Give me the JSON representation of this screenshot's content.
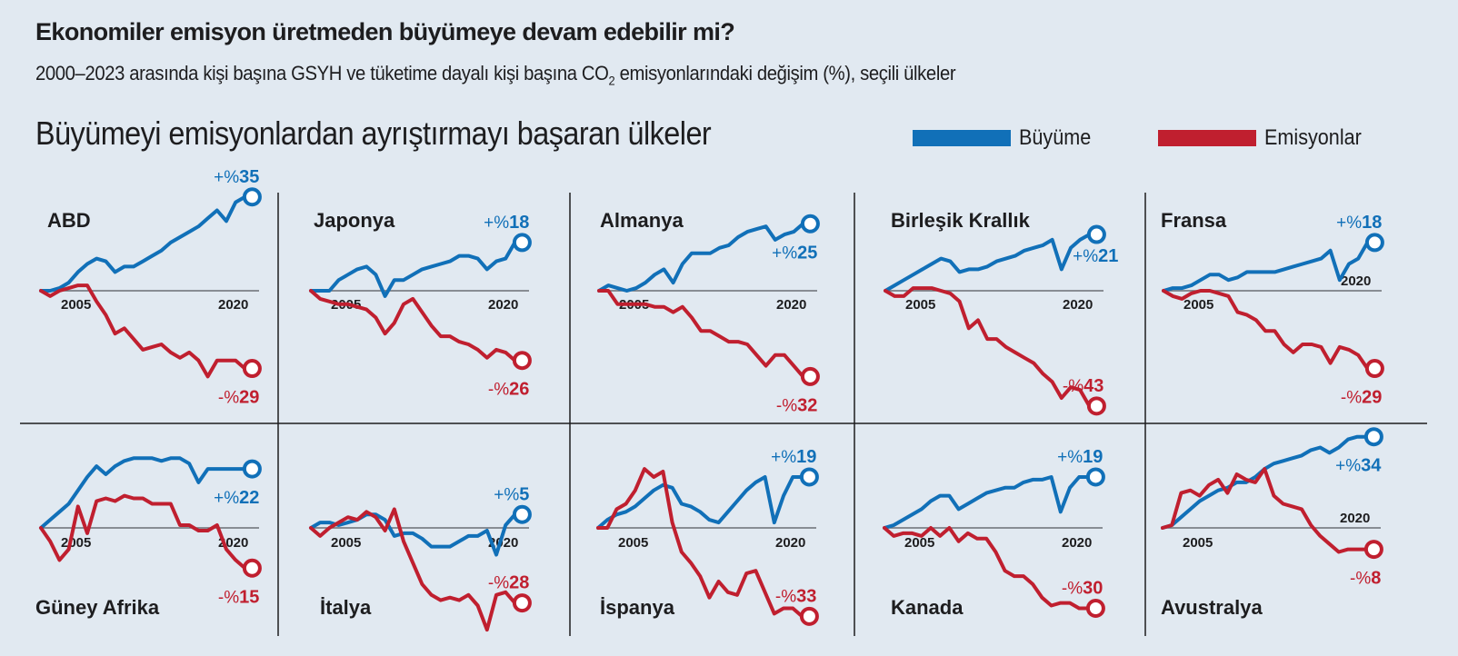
{
  "header": {
    "title": "Ekonomiler emisyon üretmeden büyümeye devam edebilir mi?",
    "subtitle_pre": "2000–2023 arasında kişi başına GSYH ve tüketime dayalı kişi başına CO",
    "subtitle_sub": "2",
    "subtitle_post": " emisyonlarındaki değişim (%), seçili ülkeler",
    "section": "Büyümeyi emisyonlardan ayrıştırmayı başaran ülkeler"
  },
  "legend": [
    {
      "label": "Büyüme",
      "color": "#1170b8"
    },
    {
      "label": "Emisyonlar",
      "color": "#c01f2f"
    }
  ],
  "chart_data": {
    "type": "line",
    "title": "Büyümeyi emisyonlardan ayrıştırmayı başaran ülkeler",
    "x": [
      2000,
      2001,
      2002,
      2003,
      2004,
      2005,
      2006,
      2007,
      2008,
      2009,
      2010,
      2011,
      2012,
      2013,
      2014,
      2015,
      2016,
      2017,
      2018,
      2019,
      2020,
      2021,
      2022,
      2023
    ],
    "xticks": [
      "2005",
      "2020"
    ],
    "ylabel": "Değişim (%)",
    "series_names": [
      "Büyüme",
      "Emisyonlar"
    ],
    "panels": [
      {
        "country": "ABD",
        "growth": [
          0,
          0,
          1,
          3,
          7,
          10,
          12,
          11,
          7,
          9,
          9,
          11,
          13,
          15,
          18,
          20,
          22,
          24,
          27,
          30,
          26,
          33,
          35,
          35
        ],
        "emissions": [
          0,
          -2,
          0,
          1,
          2,
          2,
          -4,
          -9,
          -16,
          -14,
          -18,
          -22,
          -21,
          -20,
          -23,
          -25,
          -23,
          -26,
          -32,
          -26,
          -26,
          -26,
          -29,
          -29
        ],
        "growth_label": "+%35",
        "emissions_label": "-%29"
      },
      {
        "country": "Japonya",
        "growth": [
          0,
          0,
          0,
          4,
          6,
          8,
          9,
          6,
          -2,
          4,
          4,
          6,
          8,
          9,
          10,
          11,
          13,
          13,
          12,
          8,
          11,
          12,
          18,
          18
        ],
        "emissions": [
          0,
          -3,
          -4,
          -5,
          -5,
          -6,
          -7,
          -10,
          -16,
          -12,
          -5,
          -3,
          -8,
          -13,
          -17,
          -17,
          -19,
          -20,
          -22,
          -25,
          -22,
          -23,
          -26,
          -26
        ],
        "growth_label": "+%18",
        "emissions_label": "-%26"
      },
      {
        "country": "Almanya",
        "growth": [
          0,
          2,
          1,
          0,
          1,
          3,
          6,
          8,
          3,
          10,
          14,
          14,
          14,
          16,
          17,
          20,
          22,
          23,
          24,
          19,
          21,
          22,
          25,
          25
        ],
        "emissions": [
          0,
          0,
          -5,
          -5,
          -5,
          -5,
          -6,
          -6,
          -8,
          -6,
          -10,
          -15,
          -15,
          -17,
          -19,
          -19,
          -20,
          -24,
          -28,
          -24,
          -24,
          -28,
          -32,
          -32
        ],
        "growth_label": "+%25",
        "emissions_label": "-%32"
      },
      {
        "country": "Birleşik Krallık",
        "growth": [
          0,
          2,
          4,
          6,
          8,
          10,
          12,
          11,
          7,
          8,
          8,
          9,
          11,
          12,
          13,
          15,
          16,
          17,
          19,
          8,
          16,
          19,
          21,
          21
        ],
        "emissions": [
          0,
          -2,
          -2,
          1,
          1,
          1,
          0,
          -1,
          -4,
          -14,
          -11,
          -18,
          -18,
          -21,
          -23,
          -25,
          -27,
          -31,
          -34,
          -40,
          -36,
          -37,
          -43,
          -43
        ],
        "growth_label": "+%21",
        "emissions_label": "-%43"
      },
      {
        "country": "Fransa",
        "growth": [
          0,
          1,
          1,
          2,
          4,
          6,
          6,
          4,
          5,
          7,
          7,
          7,
          7,
          8,
          9,
          10,
          11,
          12,
          15,
          4,
          10,
          12,
          18,
          18
        ],
        "emissions": [
          0,
          -2,
          -3,
          -1,
          0,
          0,
          -1,
          -2,
          -8,
          -9,
          -11,
          -15,
          -15,
          -20,
          -23,
          -20,
          -20,
          -21,
          -27,
          -21,
          -22,
          -24,
          -29,
          -29
        ],
        "growth_label": "+%18",
        "emissions_label": "-%29"
      },
      {
        "country": "Güney Afrika",
        "growth": [
          0,
          3,
          6,
          9,
          14,
          19,
          23,
          20,
          23,
          25,
          26,
          26,
          26,
          25,
          26,
          26,
          24,
          17,
          22,
          22,
          22,
          22,
          22,
          22
        ],
        "emissions": [
          0,
          -5,
          -12,
          -8,
          8,
          -2,
          10,
          11,
          10,
          12,
          11,
          11,
          9,
          9,
          9,
          1,
          1,
          -1,
          -1,
          1,
          -8,
          -12,
          -15,
          -15
        ],
        "growth_label": "+%22",
        "emissions_label": "-%15"
      },
      {
        "country": "İtalya",
        "growth": [
          0,
          2,
          2,
          1,
          2,
          3,
          5,
          5,
          3,
          -3,
          -2,
          -2,
          -4,
          -7,
          -7,
          -7,
          -5,
          -3,
          -3,
          -1,
          -10,
          1,
          5,
          5
        ],
        "emissions": [
          0,
          -3,
          0,
          2,
          4,
          3,
          6,
          4,
          -1,
          7,
          -5,
          -13,
          -21,
          -25,
          -27,
          -26,
          -27,
          -25,
          -29,
          -38,
          -25,
          -24,
          -28,
          -28
        ],
        "growth_label": "+%5",
        "emissions_label": "-%28"
      },
      {
        "country": "İspanya",
        "growth": [
          0,
          3,
          5,
          6,
          8,
          11,
          14,
          16,
          15,
          9,
          8,
          6,
          3,
          2,
          6,
          10,
          14,
          17,
          19,
          2,
          12,
          19,
          19,
          19
        ],
        "emissions": [
          0,
          0,
          7,
          9,
          14,
          22,
          19,
          21,
          2,
          -9,
          -13,
          -18,
          -26,
          -20,
          -24,
          -25,
          -17,
          -16,
          -24,
          -32,
          -30,
          -30,
          -33,
          -33
        ],
        "growth_label": "+%19",
        "emissions_label": "-%33"
      },
      {
        "country": "Kanada",
        "growth": [
          0,
          1,
          3,
          5,
          7,
          10,
          12,
          12,
          7,
          9,
          11,
          13,
          14,
          15,
          15,
          17,
          18,
          18,
          19,
          6,
          15,
          19,
          19,
          19
        ],
        "emissions": [
          0,
          -3,
          -2,
          -2,
          -3,
          0,
          -3,
          0,
          -5,
          -2,
          -4,
          -4,
          -9,
          -16,
          -18,
          -18,
          -21,
          -26,
          -29,
          -28,
          -28,
          -30,
          -30,
          -30
        ],
        "growth_label": "+%19",
        "emissions_label": "-%30"
      },
      {
        "country": "Avustralya",
        "growth": [
          0,
          1,
          4,
          7,
          10,
          12,
          14,
          15,
          17,
          17,
          19,
          22,
          24,
          25,
          26,
          27,
          29,
          30,
          28,
          30,
          33,
          34,
          34,
          34
        ],
        "emissions": [
          0,
          1,
          13,
          14,
          12,
          16,
          18,
          13,
          20,
          18,
          17,
          22,
          12,
          9,
          8,
          7,
          1,
          -3,
          -6,
          -9,
          -8,
          -8,
          -8,
          -8
        ],
        "growth_label": "+%34",
        "emissions_label": "-%8"
      }
    ]
  }
}
